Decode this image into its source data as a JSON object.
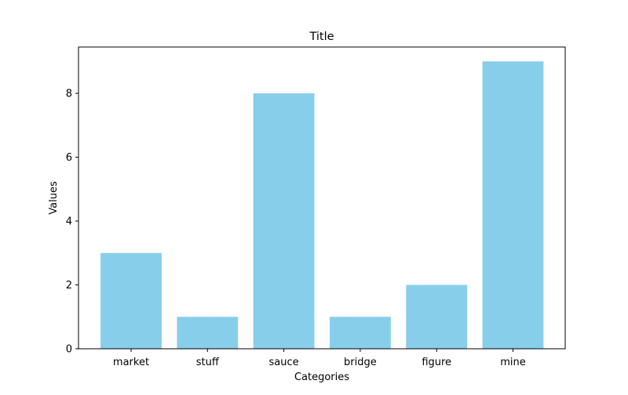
{
  "chart_data": {
    "type": "bar",
    "title": "Title",
    "xlabel": "Categories",
    "ylabel": "Values",
    "categories": [
      "market",
      "stuff",
      "sauce",
      "bridge",
      "figure",
      "mine"
    ],
    "values": [
      3,
      1,
      8,
      1,
      2,
      9
    ],
    "ylim": [
      0,
      9.45
    ],
    "yticks": [
      0,
      2,
      4,
      6,
      8
    ],
    "bar_color": "#87CEEB",
    "grid": false,
    "legend": "none"
  }
}
